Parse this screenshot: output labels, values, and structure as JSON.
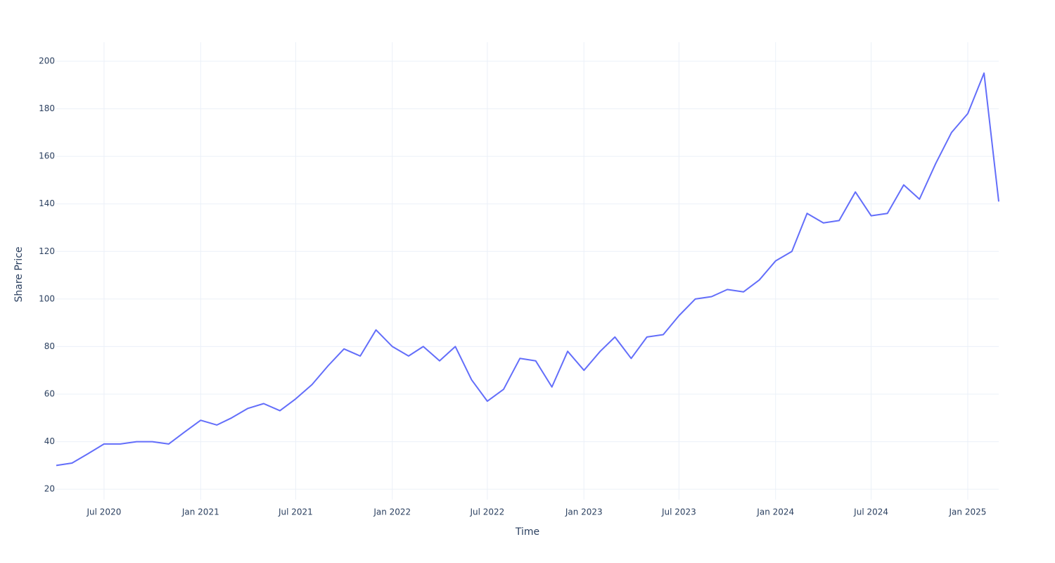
{
  "chart_data": {
    "type": "line",
    "x_label": "Time",
    "y_label": "Share Price",
    "x": [
      "2020-04",
      "2020-05",
      "2020-06",
      "2020-07",
      "2020-08",
      "2020-09",
      "2020-10",
      "2020-11",
      "2020-12",
      "2021-01",
      "2021-02",
      "2021-03",
      "2021-04",
      "2021-05",
      "2021-06",
      "2021-07",
      "2021-08",
      "2021-09",
      "2021-10",
      "2021-11",
      "2021-12",
      "2022-01",
      "2022-02",
      "2022-03",
      "2022-04",
      "2022-05",
      "2022-06",
      "2022-07",
      "2022-08",
      "2022-09",
      "2022-10",
      "2022-11",
      "2022-12",
      "2023-01",
      "2023-02",
      "2023-03",
      "2023-04",
      "2023-05",
      "2023-06",
      "2023-07",
      "2023-08",
      "2023-09",
      "2023-10",
      "2023-11",
      "2023-12",
      "2024-01",
      "2024-02",
      "2024-03",
      "2024-04",
      "2024-05",
      "2024-06",
      "2024-07",
      "2024-08",
      "2024-09",
      "2024-10",
      "2024-11",
      "2024-12",
      "2025-01",
      "2025-02",
      "2025-03"
    ],
    "series": [
      {
        "color": "#636efa",
        "values": [
          30,
          31,
          35,
          39,
          39,
          40,
          40,
          39,
          44,
          49,
          47,
          50,
          54,
          56,
          53,
          58,
          64,
          72,
          79,
          76,
          87,
          80,
          76,
          80,
          74,
          80,
          66,
          57,
          62,
          75,
          74,
          63,
          78,
          70,
          78,
          84,
          75,
          84,
          85,
          93,
          100,
          101,
          104,
          103,
          108,
          116,
          120,
          136,
          132,
          133,
          145,
          135,
          136,
          148,
          142,
          157,
          170,
          178,
          195,
          141
        ]
      }
    ],
    "xlim": [
      "2020-04",
      "2025-03"
    ],
    "xticks": [
      {
        "value": "2020-07",
        "label": "Jul 2020"
      },
      {
        "value": "2021-01",
        "label": "Jan 2021"
      },
      {
        "value": "2021-07",
        "label": "Jul 2021"
      },
      {
        "value": "2022-01",
        "label": "Jan 2022"
      },
      {
        "value": "2022-07",
        "label": "Jul 2022"
      },
      {
        "value": "2023-01",
        "label": "Jan 2023"
      },
      {
        "value": "2023-07",
        "label": "Jul 2023"
      },
      {
        "value": "2024-01",
        "label": "Jan 2024"
      },
      {
        "value": "2024-07",
        "label": "Jul 2024"
      },
      {
        "value": "2025-01",
        "label": "Jan 2025"
      }
    ],
    "ylim": [
      15.6,
      208
    ],
    "yticks": [
      20,
      40,
      60,
      80,
      100,
      120,
      140,
      160,
      180,
      200
    ],
    "grid": true
  }
}
